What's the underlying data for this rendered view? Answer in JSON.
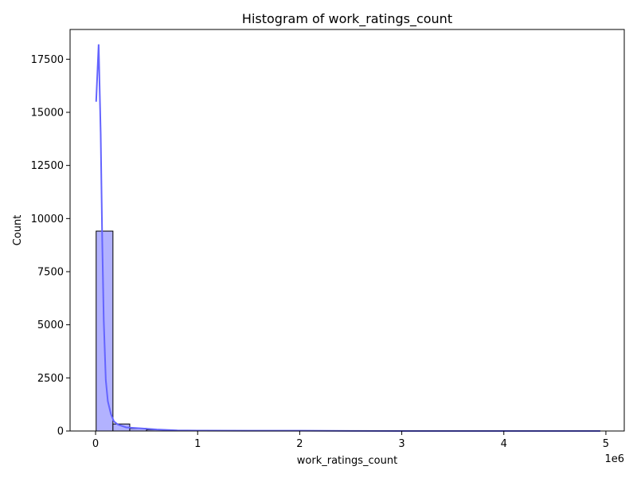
{
  "chart_data": {
    "type": "bar",
    "title": "Histogram of work_ratings_count",
    "xlabel": "work_ratings_count",
    "ylabel": "Count",
    "x_multiplier_label": "1e6",
    "xlim": [
      -250000,
      5180000
    ],
    "ylim": [
      0,
      18900
    ],
    "x_ticks": [
      {
        "value": 0,
        "label": "0"
      },
      {
        "value": 1000000,
        "label": "1"
      },
      {
        "value": 2000000,
        "label": "2"
      },
      {
        "value": 3000000,
        "label": "3"
      },
      {
        "value": 4000000,
        "label": "4"
      },
      {
        "value": 5000000,
        "label": "5"
      }
    ],
    "y_ticks": [
      {
        "value": 0,
        "label": "0"
      },
      {
        "value": 2500,
        "label": "2500"
      },
      {
        "value": 5000,
        "label": "5000"
      },
      {
        "value": 7500,
        "label": "7500"
      },
      {
        "value": 10000,
        "label": "10000"
      },
      {
        "value": 12500,
        "label": "12500"
      },
      {
        "value": 15000,
        "label": "15000"
      },
      {
        "value": 17500,
        "label": "17500"
      }
    ],
    "bin_start": 5510,
    "bin_width": 164600,
    "counts": [
      9410,
      330,
      120,
      60,
      25,
      12,
      8,
      5,
      4,
      3,
      2,
      2,
      2,
      1,
      1,
      1,
      1,
      1,
      1,
      1,
      1,
      1,
      1,
      1,
      1,
      1,
      1,
      1,
      1,
      1
    ],
    "kde": [
      {
        "x": 5510,
        "y": 15500
      },
      {
        "x": 30000,
        "y": 18200
      },
      {
        "x": 50000,
        "y": 14000
      },
      {
        "x": 65000,
        "y": 9000
      },
      {
        "x": 80000,
        "y": 5200
      },
      {
        "x": 100000,
        "y": 2400
      },
      {
        "x": 120000,
        "y": 1400
      },
      {
        "x": 150000,
        "y": 800
      },
      {
        "x": 180000,
        "y": 450
      },
      {
        "x": 220000,
        "y": 300
      },
      {
        "x": 300000,
        "y": 170
      },
      {
        "x": 450000,
        "y": 120
      },
      {
        "x": 600000,
        "y": 70
      },
      {
        "x": 800000,
        "y": 30
      },
      {
        "x": 1000000,
        "y": 18
      },
      {
        "x": 1500000,
        "y": 12
      },
      {
        "x": 2000000,
        "y": 15
      },
      {
        "x": 2500000,
        "y": 5
      },
      {
        "x": 3000000,
        "y": 2
      },
      {
        "x": 4000000,
        "y": 1
      },
      {
        "x": 4945000,
        "y": 0
      }
    ],
    "grid": false,
    "legend": "none",
    "colors": {
      "bar_fill": "#b2b2ff",
      "bar_edge": "#000000",
      "kde_line": "#6464ff",
      "axes": "#000000"
    }
  }
}
